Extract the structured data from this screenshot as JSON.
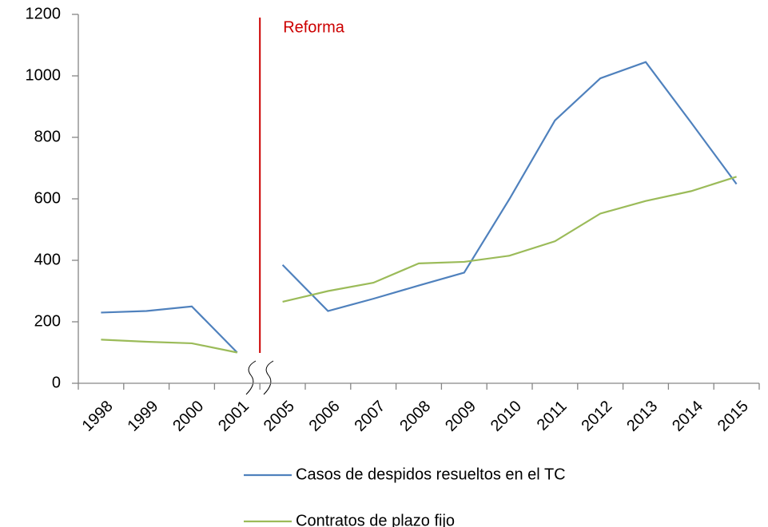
{
  "chart_data": {
    "type": "line",
    "categories": [
      "1998",
      "1999",
      "2000",
      "2001",
      "2005",
      "2006",
      "2007",
      "2008",
      "2009",
      "2010",
      "2011",
      "2012",
      "2013",
      "2014",
      "2015"
    ],
    "series": [
      {
        "name": "Casos de despidos resueltos en el TC",
        "color": "#4f81bd",
        "values": [
          230,
          235,
          250,
          100,
          385,
          235,
          275,
          318,
          360,
          600,
          855,
          992,
          1045,
          848,
          648
        ]
      },
      {
        "name": "Contratos de plazo fijo",
        "color": "#9bbb59",
        "values": [
          142,
          135,
          130,
          100,
          265,
          300,
          327,
          390,
          395,
          415,
          462,
          552,
          593,
          625,
          672
        ]
      }
    ],
    "ylim": [
      0,
      1200
    ],
    "yticks": [
      0,
      200,
      400,
      600,
      800,
      1000,
      1200
    ],
    "axis_break_after_index": 3,
    "annotation": {
      "text": "Reforma",
      "color": "#cc0000"
    },
    "grid": false,
    "legend": "bottom"
  }
}
